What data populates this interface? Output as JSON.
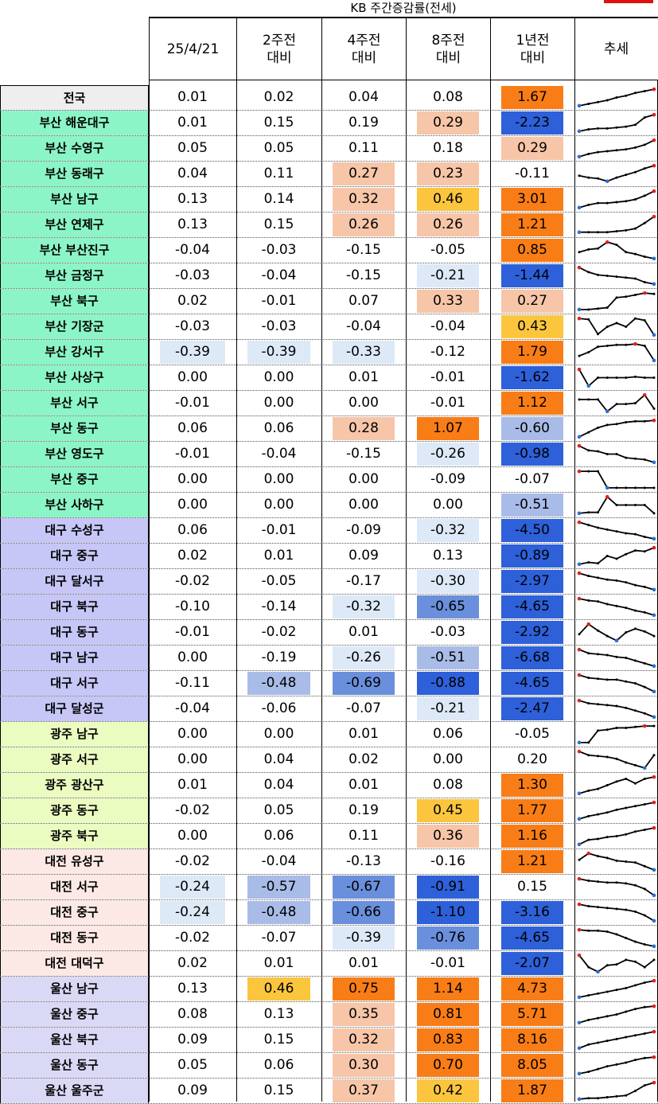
{
  "title": "KB 주간증감률(전세)",
  "headers": {
    "date": "25/4/21",
    "w2": [
      "2주전",
      "대비"
    ],
    "w4": [
      "4주전",
      "대비"
    ],
    "w8": [
      "8주전",
      "대비"
    ],
    "y1": [
      "1년전",
      "대비"
    ],
    "trend": "추세"
  },
  "colors": {
    "orange": "#f97d16",
    "peach": "#f7c5a8",
    "yellow": "#fbc63e",
    "blue_dark": "#2e60d9",
    "blue_mid": "#6a8fdc",
    "blue_light": "#a9bce8",
    "blue_pale": "#dde9f7",
    "grp_nat": "#eeeeee",
    "grp_busan": "#8cf5c7",
    "grp_daegu": "#c6c6f7",
    "grp_gwangju": "#ebfcc1",
    "grp_daejeon": "#fce9e5",
    "grp_ulsan": "#dad9f5"
  },
  "rows": [
    {
      "region": "전국",
      "group": "nat",
      "v": [
        "0.01",
        "0.02",
        "0.04",
        "0.08",
        "1.67"
      ],
      "c": [
        "",
        "",
        "",
        "",
        "orange"
      ],
      "t": [
        0.05,
        0.15,
        0.25,
        0.35,
        0.5,
        0.6,
        0.75,
        0.85,
        0.95
      ]
    },
    {
      "region": "부산 해운대구",
      "group": "busan",
      "v": [
        "0.01",
        "0.15",
        "0.19",
        "0.29",
        "-2.23"
      ],
      "c": [
        "",
        "",
        "",
        "peach",
        "blue_dark"
      ],
      "t": [
        0.05,
        0.15,
        0.2,
        0.2,
        0.25,
        0.3,
        0.4,
        0.8,
        0.95
      ]
    },
    {
      "region": "부산 수영구",
      "group": "busan",
      "v": [
        "0.05",
        "0.05",
        "0.11",
        "0.18",
        "0.29"
      ],
      "c": [
        "",
        "",
        "",
        "",
        "peach"
      ],
      "t": [
        0.05,
        0.2,
        0.3,
        0.35,
        0.4,
        0.45,
        0.55,
        0.7,
        0.95
      ]
    },
    {
      "region": "부산 동래구",
      "group": "busan",
      "v": [
        "0.04",
        "0.11",
        "0.27",
        "0.23",
        "-0.11"
      ],
      "c": [
        "",
        "",
        "peach",
        "peach",
        ""
      ],
      "t": [
        0.4,
        0.3,
        0.25,
        0.1,
        0.3,
        0.45,
        0.6,
        0.8,
        0.95
      ]
    },
    {
      "region": "부산 남구",
      "group": "busan",
      "v": [
        "0.13",
        "0.14",
        "0.32",
        "0.46",
        "3.01"
      ],
      "c": [
        "",
        "",
        "peach",
        "yellow",
        "orange"
      ],
      "t": [
        0.05,
        0.2,
        0.3,
        0.3,
        0.35,
        0.4,
        0.5,
        0.7,
        0.95
      ]
    },
    {
      "region": "부산 연제구",
      "group": "busan",
      "v": [
        "0.13",
        "0.15",
        "0.26",
        "0.26",
        "1.21"
      ],
      "c": [
        "",
        "",
        "peach",
        "peach",
        "orange"
      ],
      "t": [
        0.1,
        0.1,
        0.1,
        0.1,
        0.15,
        0.2,
        0.3,
        0.6,
        0.95
      ]
    },
    {
      "region": "부산 부산진구",
      "group": "busan",
      "v": [
        "-0.04",
        "-0.03",
        "-0.15",
        "-0.05",
        "0.85"
      ],
      "c": [
        "",
        "",
        "",
        "",
        "orange"
      ],
      "t": [
        0.4,
        0.55,
        0.6,
        0.95,
        0.8,
        0.4,
        0.3,
        0.15,
        0.05
      ]
    },
    {
      "region": "부산 금정구",
      "group": "busan",
      "v": [
        "-0.03",
        "-0.04",
        "-0.15",
        "-0.21",
        "-1.44"
      ],
      "c": [
        "",
        "",
        "",
        "blue_pale",
        "blue_dark"
      ],
      "t": [
        0.95,
        0.7,
        0.55,
        0.5,
        0.45,
        0.4,
        0.35,
        0.15,
        0.05
      ]
    },
    {
      "region": "부산 북구",
      "group": "busan",
      "v": [
        "0.02",
        "-0.01",
        "0.07",
        "0.33",
        "0.27"
      ],
      "c": [
        "",
        "",
        "",
        "peach",
        "peach"
      ],
      "t": [
        0.05,
        0.05,
        0.1,
        0.15,
        0.7,
        0.75,
        0.85,
        0.95,
        0.9
      ]
    },
    {
      "region": "부산 기장군",
      "group": "busan",
      "v": [
        "-0.03",
        "-0.03",
        "-0.04",
        "-0.04",
        "0.43"
      ],
      "c": [
        "",
        "",
        "",
        "",
        "yellow"
      ],
      "t": [
        0.95,
        0.9,
        0.1,
        0.5,
        0.7,
        0.5,
        0.95,
        0.85,
        0.05
      ]
    },
    {
      "region": "부산 강서구",
      "group": "busan",
      "v": [
        "-0.39",
        "-0.39",
        "-0.33",
        "-0.12",
        "1.79"
      ],
      "c": [
        "blue_pale",
        "blue_pale",
        "blue_pale",
        "",
        "orange"
      ],
      "t": [
        0.3,
        0.5,
        0.8,
        0.85,
        0.9,
        0.9,
        0.95,
        0.85,
        0.05
      ]
    },
    {
      "region": "부산 사상구",
      "group": "busan",
      "v": [
        "0.00",
        "0.00",
        "0.01",
        "-0.01",
        "-1.62"
      ],
      "c": [
        "",
        "",
        "",
        "",
        "blue_dark"
      ],
      "t": [
        0.95,
        0.05,
        0.5,
        0.5,
        0.5,
        0.5,
        0.55,
        0.5,
        0.5
      ]
    },
    {
      "region": "부산 서구",
      "group": "busan",
      "v": [
        "-0.01",
        "0.00",
        "0.00",
        "-0.01",
        "1.12"
      ],
      "c": [
        "",
        "",
        "",
        "",
        "orange"
      ],
      "t": [
        0.7,
        0.7,
        0.7,
        0.05,
        0.45,
        0.45,
        0.5,
        0.95,
        0.2
      ]
    },
    {
      "region": "부산 동구",
      "group": "busan",
      "v": [
        "0.06",
        "0.06",
        "0.28",
        "1.07",
        "-0.60"
      ],
      "c": [
        "",
        "",
        "peach",
        "orange",
        "blue_light"
      ],
      "t": [
        0.05,
        0.3,
        0.55,
        0.7,
        0.75,
        0.85,
        0.9,
        0.9,
        0.95
      ]
    },
    {
      "region": "부산 영도구",
      "group": "busan",
      "v": [
        "-0.01",
        "-0.04",
        "-0.15",
        "-0.26",
        "-0.98"
      ],
      "c": [
        "",
        "",
        "",
        "blue_pale",
        "blue_dark"
      ],
      "t": [
        0.95,
        0.7,
        0.65,
        0.5,
        0.5,
        0.3,
        0.25,
        0.2,
        0.05
      ]
    },
    {
      "region": "부산 중구",
      "group": "busan",
      "v": [
        "0.00",
        "0.00",
        "0.00",
        "-0.09",
        "-0.07"
      ],
      "c": [
        "",
        "",
        "",
        "",
        ""
      ],
      "t": [
        0.95,
        0.95,
        0.95,
        0.05,
        0.05,
        0.05,
        0.05,
        0.05,
        0.05
      ]
    },
    {
      "region": "부산 사하구",
      "group": "busan",
      "v": [
        "0.00",
        "0.00",
        "0.00",
        "0.00",
        "-0.51"
      ],
      "c": [
        "",
        "",
        "",
        "",
        "blue_light"
      ],
      "t": [
        0.05,
        0.1,
        0.1,
        0.95,
        0.5,
        0.5,
        0.5,
        0.5,
        0.05
      ]
    },
    {
      "region": "대구 수성구",
      "group": "daegu",
      "v": [
        "0.06",
        "-0.01",
        "-0.09",
        "-0.32",
        "-4.50"
      ],
      "c": [
        "",
        "",
        "",
        "blue_pale",
        "blue_dark"
      ],
      "t": [
        0.95,
        0.8,
        0.65,
        0.55,
        0.45,
        0.35,
        0.3,
        0.15,
        0.05
      ]
    },
    {
      "region": "대구 중구",
      "group": "daegu",
      "v": [
        "0.02",
        "0.01",
        "0.09",
        "0.13",
        "-0.89"
      ],
      "c": [
        "",
        "",
        "",
        "",
        "blue_dark"
      ],
      "t": [
        0.05,
        0.15,
        0.1,
        0.5,
        0.35,
        0.6,
        0.8,
        0.75,
        0.95
      ]
    },
    {
      "region": "대구 달서구",
      "group": "daegu",
      "v": [
        "-0.02",
        "-0.05",
        "-0.17",
        "-0.30",
        "-2.97"
      ],
      "c": [
        "",
        "",
        "",
        "blue_pale",
        "blue_dark"
      ],
      "t": [
        0.95,
        0.8,
        0.7,
        0.6,
        0.55,
        0.45,
        0.3,
        0.2,
        0.05
      ]
    },
    {
      "region": "대구 북구",
      "group": "daegu",
      "v": [
        "-0.10",
        "-0.14",
        "-0.32",
        "-0.65",
        "-4.65"
      ],
      "c": [
        "",
        "",
        "blue_pale",
        "blue_mid",
        "blue_dark"
      ],
      "t": [
        0.95,
        0.85,
        0.8,
        0.65,
        0.55,
        0.45,
        0.3,
        0.2,
        0.05
      ]
    },
    {
      "region": "대구 동구",
      "group": "daegu",
      "v": [
        "-0.01",
        "-0.02",
        "0.01",
        "-0.03",
        "-2.92"
      ],
      "c": [
        "",
        "",
        "",
        "",
        "blue_dark"
      ],
      "t": [
        0.4,
        0.95,
        0.6,
        0.3,
        0.05,
        0.5,
        0.7,
        0.55,
        0.3
      ]
    },
    {
      "region": "대구 남구",
      "group": "daegu",
      "v": [
        "0.00",
        "-0.19",
        "-0.26",
        "-0.51",
        "-6.68"
      ],
      "c": [
        "",
        "",
        "blue_pale",
        "blue_light",
        "blue_dark"
      ],
      "t": [
        0.95,
        0.75,
        0.7,
        0.65,
        0.55,
        0.5,
        0.35,
        0.2,
        0.05
      ]
    },
    {
      "region": "대구 서구",
      "group": "daegu",
      "v": [
        "-0.11",
        "-0.48",
        "-0.69",
        "-0.88",
        "-4.65"
      ],
      "c": [
        "",
        "blue_light",
        "blue_mid",
        "blue_dark",
        "blue_dark"
      ],
      "t": [
        0.95,
        0.8,
        0.75,
        0.7,
        0.7,
        0.6,
        0.5,
        0.3,
        0.05
      ]
    },
    {
      "region": "대구 달성군",
      "group": "daegu",
      "v": [
        "-0.04",
        "-0.06",
        "-0.07",
        "-0.21",
        "-2.47"
      ],
      "c": [
        "",
        "",
        "",
        "blue_pale",
        "blue_dark"
      ],
      "t": [
        0.95,
        0.8,
        0.75,
        0.7,
        0.65,
        0.55,
        0.4,
        0.25,
        0.05
      ]
    },
    {
      "region": "광주 남구",
      "group": "gwangju",
      "v": [
        "0.00",
        "0.00",
        "0.01",
        "0.06",
        "-0.05"
      ],
      "c": [
        "",
        "",
        "",
        "",
        ""
      ],
      "t": [
        0.05,
        0.05,
        0.7,
        0.75,
        0.85,
        0.85,
        0.9,
        0.95,
        0.95
      ]
    },
    {
      "region": "광주 서구",
      "group": "gwangju",
      "v": [
        "0.00",
        "0.04",
        "0.02",
        "0.00",
        "0.20"
      ],
      "c": [
        "",
        "",
        "",
        "",
        ""
      ],
      "t": [
        0.95,
        0.75,
        0.7,
        0.65,
        0.55,
        0.35,
        0.2,
        0.05,
        0.75
      ]
    },
    {
      "region": "광주 광산구",
      "group": "gwangju",
      "v": [
        "0.01",
        "0.04",
        "0.01",
        "0.08",
        "1.30"
      ],
      "c": [
        "",
        "",
        "",
        "",
        "orange"
      ],
      "t": [
        0.05,
        0.2,
        0.3,
        0.5,
        0.7,
        0.85,
        0.6,
        0.85,
        0.95
      ]
    },
    {
      "region": "광주 동구",
      "group": "gwangju",
      "v": [
        "-0.02",
        "0.05",
        "0.19",
        "0.45",
        "1.77"
      ],
      "c": [
        "",
        "",
        "",
        "yellow",
        "orange"
      ],
      "t": [
        0.05,
        0.2,
        0.3,
        0.4,
        0.55,
        0.65,
        0.75,
        0.85,
        0.95
      ]
    },
    {
      "region": "광주 북구",
      "group": "gwangju",
      "v": [
        "0.00",
        "0.06",
        "0.11",
        "0.36",
        "1.16"
      ],
      "c": [
        "",
        "",
        "",
        "peach",
        "orange"
      ],
      "t": [
        0.05,
        0.3,
        0.35,
        0.45,
        0.5,
        0.6,
        0.75,
        0.85,
        0.95
      ]
    },
    {
      "region": "대전 유성구",
      "group": "daejeon",
      "v": [
        "-0.02",
        "-0.04",
        "-0.13",
        "-0.16",
        "1.21"
      ],
      "c": [
        "",
        "",
        "",
        "",
        "orange"
      ],
      "t": [
        0.6,
        0.95,
        0.8,
        0.7,
        0.55,
        0.5,
        0.45,
        0.25,
        0.05
      ]
    },
    {
      "region": "대전 서구",
      "group": "daejeon",
      "v": [
        "-0.24",
        "-0.57",
        "-0.67",
        "-0.91",
        "0.15"
      ],
      "c": [
        "blue_pale",
        "blue_light",
        "blue_mid",
        "blue_dark",
        ""
      ],
      "t": [
        0.95,
        0.85,
        0.8,
        0.75,
        0.75,
        0.7,
        0.6,
        0.4,
        0.05
      ]
    },
    {
      "region": "대전 중구",
      "group": "daejeon",
      "v": [
        "-0.24",
        "-0.48",
        "-0.66",
        "-1.10",
        "-3.16"
      ],
      "c": [
        "blue_pale",
        "blue_light",
        "blue_mid",
        "blue_dark",
        "blue_dark"
      ],
      "t": [
        0.95,
        0.85,
        0.8,
        0.75,
        0.7,
        0.65,
        0.55,
        0.35,
        0.05
      ]
    },
    {
      "region": "대전 동구",
      "group": "daejeon",
      "v": [
        "-0.02",
        "-0.07",
        "-0.39",
        "-0.76",
        "-4.65"
      ],
      "c": [
        "",
        "",
        "blue_pale",
        "blue_mid",
        "blue_dark"
      ],
      "t": [
        0.95,
        0.9,
        0.9,
        0.85,
        0.7,
        0.5,
        0.3,
        0.15,
        0.05
      ]
    },
    {
      "region": "대전 대덕구",
      "group": "daejeon",
      "v": [
        "0.02",
        "0.01",
        "0.01",
        "-0.01",
        "-2.07"
      ],
      "c": [
        "",
        "",
        "",
        "",
        "blue_dark"
      ],
      "t": [
        0.95,
        0.3,
        0.05,
        0.4,
        0.45,
        0.7,
        0.6,
        0.3,
        0.7
      ]
    },
    {
      "region": "울산 남구",
      "group": "ulsan",
      "v": [
        "0.13",
        "0.46",
        "0.75",
        "1.14",
        "4.73"
      ],
      "c": [
        "",
        "yellow",
        "orange",
        "orange",
        "orange"
      ],
      "t": [
        0.05,
        0.15,
        0.25,
        0.35,
        0.45,
        0.55,
        0.7,
        0.85,
        0.95
      ]
    },
    {
      "region": "울산 중구",
      "group": "ulsan",
      "v": [
        "0.08",
        "0.13",
        "0.35",
        "0.81",
        "5.71"
      ],
      "c": [
        "",
        "",
        "peach",
        "orange",
        "orange"
      ],
      "t": [
        0.05,
        0.2,
        0.3,
        0.4,
        0.5,
        0.65,
        0.8,
        0.9,
        0.95
      ]
    },
    {
      "region": "울산 북구",
      "group": "ulsan",
      "v": [
        "0.09",
        "0.15",
        "0.32",
        "0.83",
        "8.16"
      ],
      "c": [
        "",
        "",
        "peach",
        "orange",
        "orange"
      ],
      "t": [
        0.05,
        0.25,
        0.35,
        0.45,
        0.55,
        0.65,
        0.75,
        0.85,
        0.95
      ]
    },
    {
      "region": "울산 동구",
      "group": "ulsan",
      "v": [
        "0.05",
        "0.06",
        "0.30",
        "0.70",
        "8.05"
      ],
      "c": [
        "",
        "",
        "peach",
        "orange",
        "orange"
      ],
      "t": [
        0.05,
        0.15,
        0.3,
        0.45,
        0.55,
        0.65,
        0.8,
        0.9,
        0.95
      ]
    },
    {
      "region": "울산 울주군",
      "group": "ulsan",
      "v": [
        "0.09",
        "0.15",
        "0.37",
        "0.42",
        "1.87"
      ],
      "c": [
        "",
        "",
        "peach",
        "yellow",
        "orange"
      ],
      "t": [
        0.05,
        0.1,
        0.1,
        0.15,
        0.2,
        0.25,
        0.5,
        0.8,
        0.95
      ]
    }
  ]
}
